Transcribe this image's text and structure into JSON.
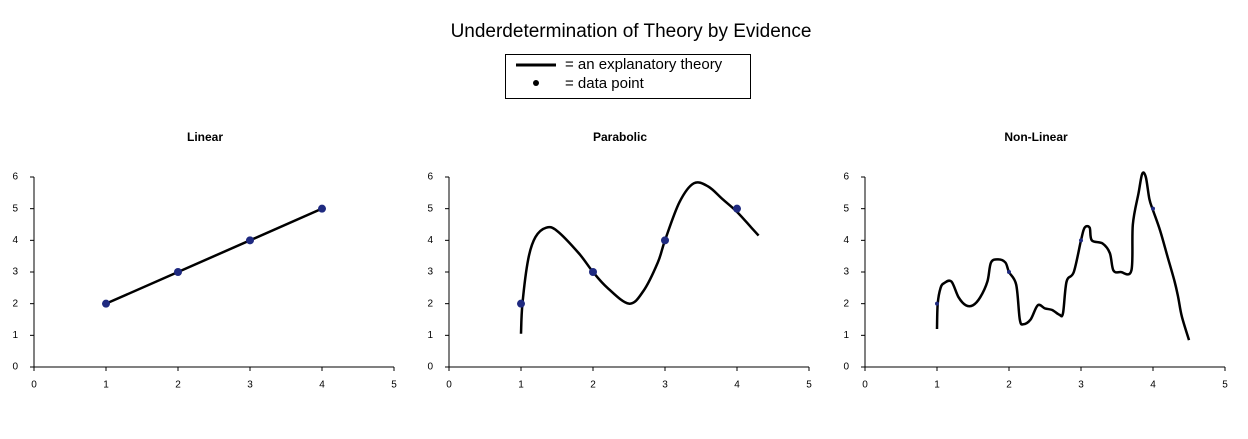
{
  "title": "Underdetermination of Theory by Evidence",
  "legend": [
    "= an explanatory theory",
    "= data point"
  ],
  "chart_data": [
    {
      "type": "line",
      "title": "Linear",
      "line_color": "#000000",
      "point_color": "#1f2a80",
      "points": {
        "x": [
          1,
          2,
          3,
          4
        ],
        "values": [
          2,
          3,
          4,
          5
        ]
      },
      "curve": {
        "x": [
          1,
          4
        ],
        "values": [
          2,
          5
        ]
      },
      "xlim": [
        0,
        5
      ],
      "ylim": [
        0,
        6
      ],
      "xticks": [
        0,
        1,
        2,
        3,
        4,
        5
      ],
      "yticks": [
        0,
        1,
        2,
        3,
        4,
        5,
        6
      ],
      "grid": false
    },
    {
      "type": "line",
      "title": "Parabolic",
      "line_color": "#000000",
      "point_color": "#1f2a80",
      "points": {
        "x": [
          1,
          2,
          3,
          4
        ],
        "values": [
          2,
          3,
          4,
          5
        ]
      },
      "curve": {
        "x": [
          1,
          1.02,
          1.1,
          1.2,
          1.35,
          1.5,
          1.8,
          2,
          2.2,
          2.5,
          2.7,
          2.9,
          3,
          3.2,
          3.4,
          3.6,
          3.8,
          4,
          4.2,
          4.3
        ],
        "values": [
          1.05,
          2,
          3.4,
          4.1,
          4.4,
          4.3,
          3.6,
          3,
          2.5,
          2,
          2.4,
          3.3,
          4,
          5.2,
          5.8,
          5.7,
          5.3,
          4.9,
          4.4,
          4.15
        ]
      },
      "xlim": [
        0,
        5
      ],
      "ylim": [
        0,
        6
      ],
      "xticks": [
        0,
        1,
        2,
        3,
        4,
        5
      ],
      "yticks": [
        0,
        1,
        2,
        3,
        4,
        5,
        6
      ],
      "grid": false
    },
    {
      "type": "line",
      "title": "Non-Linear",
      "line_color": "#000000",
      "point_color": "#1f2a80",
      "points": {
        "x": [
          1,
          2,
          3,
          4
        ],
        "values": [
          2,
          3,
          4,
          5
        ]
      },
      "curve": {
        "x": [
          1,
          1.01,
          1.05,
          1.1,
          1.2,
          1.3,
          1.4,
          1.5,
          1.6,
          1.7,
          1.75,
          1.85,
          1.95,
          2,
          2.1,
          2.15,
          2.2,
          2.3,
          2.4,
          2.5,
          2.6,
          2.7,
          2.75,
          2.8,
          2.9,
          3,
          3.05,
          3.12,
          3.15,
          3.3,
          3.4,
          3.45,
          3.55,
          3.7,
          3.72,
          3.8,
          3.85,
          3.9,
          3.95,
          4,
          4.1,
          4.2,
          4.3,
          4.35,
          4.4,
          4.5
        ],
        "values": [
          1.2,
          2,
          2.5,
          2.65,
          2.7,
          2.2,
          1.95,
          1.95,
          2.2,
          2.7,
          3.3,
          3.4,
          3.3,
          3,
          2.6,
          1.5,
          1.35,
          1.5,
          1.95,
          1.85,
          1.8,
          1.65,
          1.7,
          2.7,
          3,
          4,
          4.4,
          4.4,
          4,
          3.9,
          3.6,
          3.05,
          3,
          3.05,
          4.5,
          5.5,
          6.1,
          6,
          5.3,
          4.95,
          4.3,
          3.5,
          2.7,
          2.2,
          1.6,
          0.85
        ]
      },
      "xlim": [
        0,
        5
      ],
      "ylim": [
        0,
        6
      ],
      "xticks": [
        0,
        1,
        2,
        3,
        4,
        5
      ],
      "yticks": [
        0,
        1,
        2,
        3,
        4,
        5,
        6
      ],
      "grid": false
    }
  ]
}
